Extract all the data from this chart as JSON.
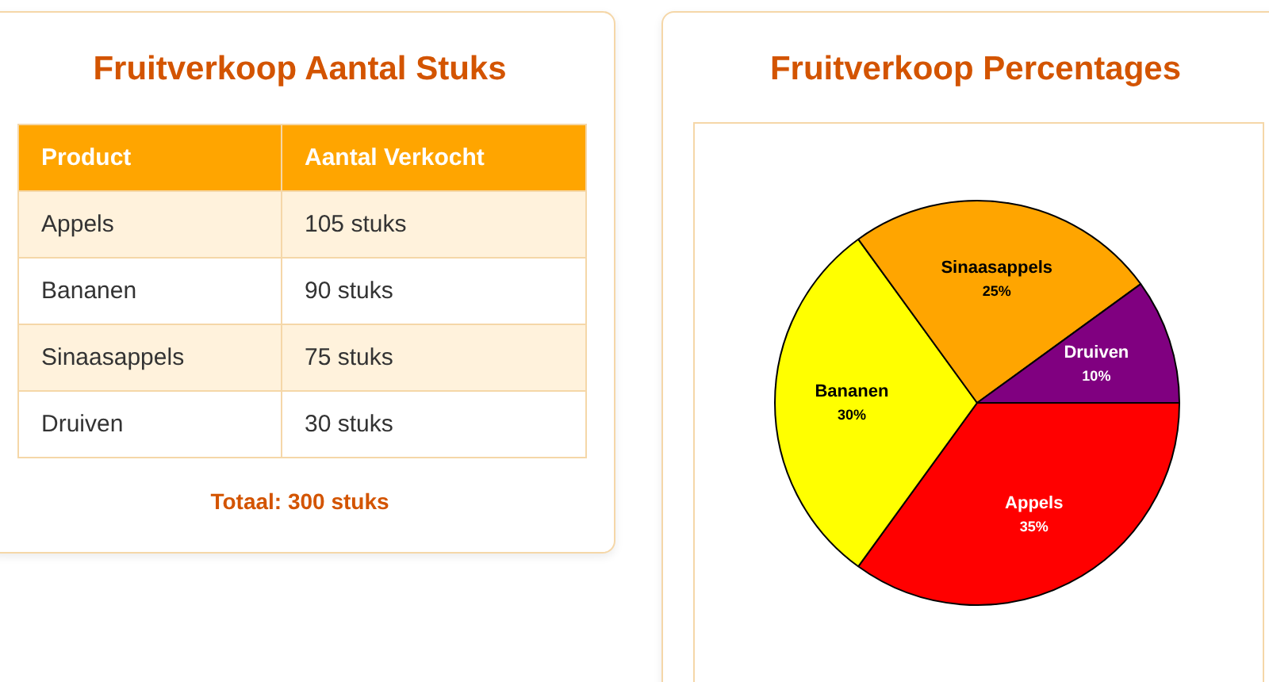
{
  "chart_data": [
    {
      "type": "other",
      "title": "Fruitverkoop Aantal Stuks",
      "xlabel": "Product",
      "ylabel": "Aantal Verkocht",
      "categories": [
        "Appels",
        "Bananen",
        "Sinaasappels",
        "Druiven"
      ],
      "values": [
        105,
        90,
        75,
        30
      ],
      "value_labels": [
        "105 stuks",
        "90 stuks",
        "75 stuks",
        "30 stuks"
      ],
      "annotations": [
        "Totaal: 300 stuks"
      ]
    },
    {
      "type": "pie",
      "title": "Fruitverkoop Percentages",
      "categories": [
        "Appels",
        "Bananen",
        "Sinaasappels",
        "Druiven"
      ],
      "values": [
        35,
        30,
        25,
        10
      ],
      "colors": [
        "#ff0000",
        "#ffff00",
        "#ffa500",
        "#800080"
      ],
      "value_labels": [
        "35%",
        "30%",
        "25%",
        "10%"
      ],
      "legend": false
    }
  ]
}
